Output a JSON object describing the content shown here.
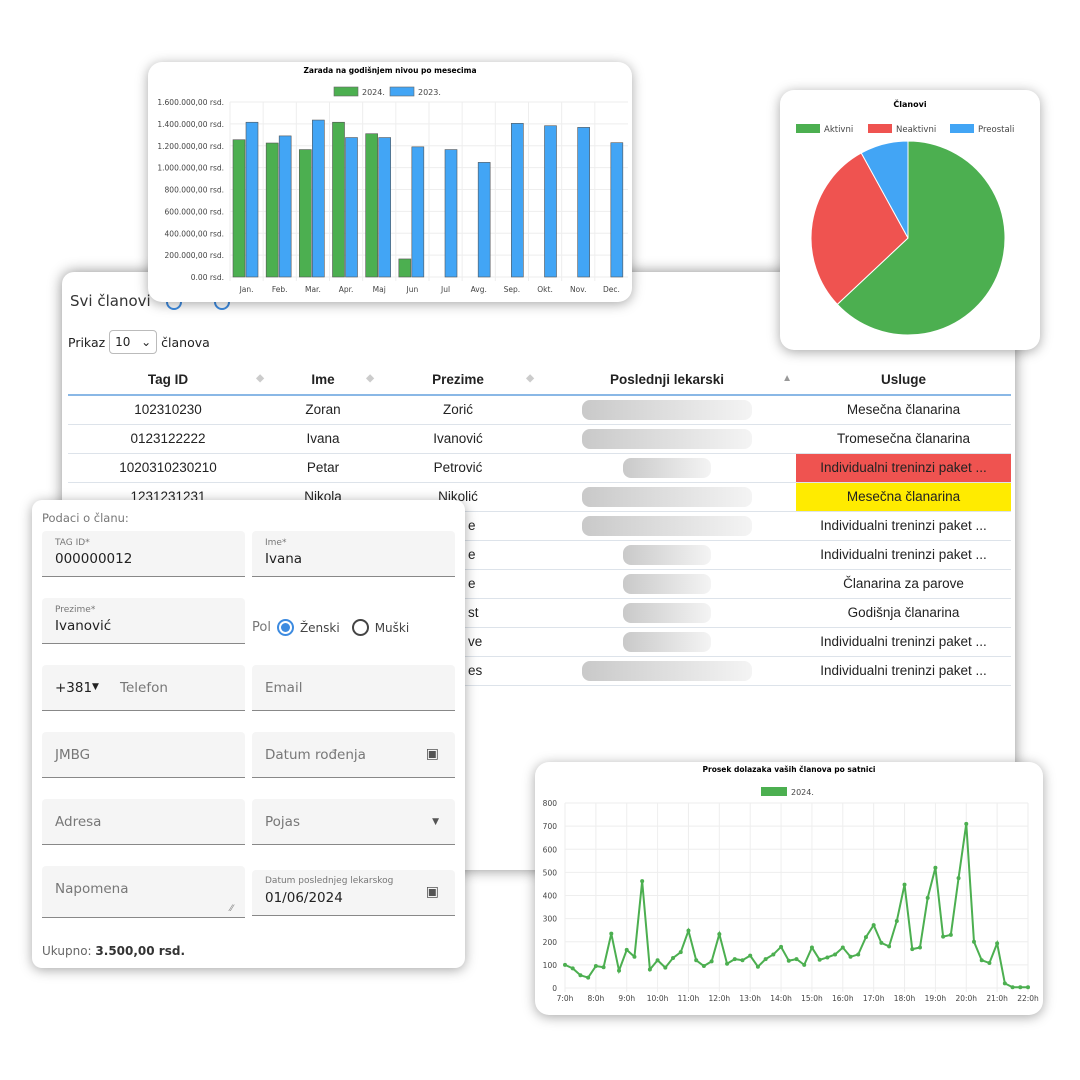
{
  "colors": {
    "green": "#4caf50",
    "blue": "#42a5f5",
    "red": "#ef5350",
    "yellow": "#ffeb00",
    "accent": "#3d8be0"
  },
  "members_table": {
    "title": "Svi članovi",
    "icons": [
      "refresh-icon",
      "search-icon"
    ],
    "show_label": "Prikaz",
    "show_value": "10",
    "show_suffix": "članova",
    "columns": [
      "Tag ID",
      "Ime",
      "Prezime",
      "Poslednji lekarski",
      "Usluge"
    ],
    "rows": [
      {
        "tag": "102310230",
        "ime": "Zoran",
        "prezime": "Zorić",
        "usluga": "Mesečna članarina",
        "status": ""
      },
      {
        "tag": "0123122222",
        "ime": "Ivana",
        "prezime": "Ivanović",
        "usluga": "Tromesečna članarina",
        "status": ""
      },
      {
        "tag": "1020310230210",
        "ime": "Petar",
        "prezime": "Petrović",
        "usluga": "Individualni treninzi paket ...",
        "status": "expired"
      },
      {
        "tag": "1231231231",
        "ime": "Nikola",
        "prezime": "Nikolić",
        "usluga": "Mesečna članarina",
        "status": "warning"
      },
      {
        "tag": "",
        "ime": "",
        "prezime": "e",
        "usluga": "Individualni treninzi paket ...",
        "status": ""
      },
      {
        "tag": "",
        "ime": "",
        "prezime": "e",
        "usluga": "Individualni treninzi paket ...",
        "status": ""
      },
      {
        "tag": "",
        "ime": "",
        "prezime": "e",
        "usluga": "Članarina za parove",
        "status": ""
      },
      {
        "tag": "",
        "ime": "",
        "prezime": "st",
        "usluga": "Godišnja članarina",
        "status": ""
      },
      {
        "tag": "",
        "ime": "",
        "prezime": "ve",
        "usluga": "Individualni treninzi paket ...",
        "status": ""
      },
      {
        "tag": "",
        "ime": "",
        "prezime": "es",
        "usluga": "Individualni treninzi paket ...",
        "status": ""
      }
    ]
  },
  "member_form": {
    "heading": "Podaci o članu:",
    "tag_label": "TAG ID*",
    "tag_value": "000000012",
    "ime_label": "Ime*",
    "ime_value": "Ivana",
    "prezime_label": "Prezime*",
    "prezime_value": "Ivanović",
    "pol_label": "Pol",
    "pol_options": [
      "Ženski",
      "Muški"
    ],
    "pol_selected": "Ženski",
    "phone_prefix": "+381",
    "phone_placeholder": "Telefon",
    "email_placeholder": "Email",
    "jmbg_placeholder": "JMBG",
    "birth_placeholder": "Datum rođenja",
    "address_placeholder": "Adresa",
    "belt_placeholder": "Pojas",
    "note_placeholder": "Napomena",
    "medical_label": "Datum poslednjeg lekarskog",
    "medical_value": "01/06/2024",
    "total_label": "Ukupno:",
    "total_value": "3.500,00 rsd."
  },
  "chart_data": [
    {
      "type": "bar",
      "title": "Zarada na godišnjem nivou po mesecima",
      "categories": [
        "Jan.",
        "Feb.",
        "Mar.",
        "Apr.",
        "Maj",
        "Jun",
        "Jul",
        "Avg.",
        "Sep.",
        "Okt.",
        "Nov.",
        "Dec."
      ],
      "series": [
        {
          "name": "2024.",
          "color": "#4caf50",
          "values": [
            1255000,
            1225000,
            1165000,
            1415000,
            1310000,
            165000,
            null,
            null,
            null,
            null,
            null,
            null
          ]
        },
        {
          "name": "2023.",
          "color": "#42a5f5",
          "values": [
            1415000,
            1290000,
            1435000,
            1275000,
            1275000,
            1190000,
            1165000,
            1048000,
            1405000,
            1383000,
            1368000,
            1228000
          ]
        }
      ],
      "ylim": [
        0,
        1600000
      ],
      "yticks": [
        "0.00 rsd.",
        "200.000,00 rsd.",
        "400.000,00 rsd.",
        "600.000,00 rsd.",
        "800.000,00 rsd.",
        "1.000.000,00 rsd.",
        "1.200.000,00 rsd.",
        "1.400.000,00 rsd.",
        "1.600.000,00 rsd."
      ],
      "legend": "top",
      "grid": true
    },
    {
      "type": "pie",
      "title": "Članovi",
      "labels": [
        "Aktivni",
        "Neaktivni",
        "Preostali"
      ],
      "values": [
        63,
        29,
        8
      ],
      "colors": [
        "#4caf50",
        "#ef5350",
        "#42a5f5"
      ],
      "legend": "top"
    },
    {
      "type": "line",
      "title": "Prosek dolazaka vaših članova po satnici",
      "series": [
        {
          "name": "2024.",
          "color": "#4caf50",
          "values": [
            100,
            85,
            55,
            45,
            95,
            90,
            235,
            75,
            165,
            135,
            462,
            80,
            120,
            88,
            130,
            155,
            248,
            120,
            95,
            115,
            233,
            105,
            125,
            120,
            140,
            92,
            125,
            145,
            178,
            118,
            125,
            100,
            175,
            122,
            132,
            145,
            175,
            135,
            145,
            220,
            272,
            195,
            180,
            290,
            447,
            168,
            175,
            390,
            520,
            222,
            230,
            475,
            710,
            200,
            120,
            108,
            193,
            20,
            3,
            3,
            3
          ]
        }
      ],
      "x_step_minutes": 15,
      "xticks": [
        "7:0h",
        "8:0h",
        "9:0h",
        "10:0h",
        "11:0h",
        "12:0h",
        "13:0h",
        "14:0h",
        "15:0h",
        "16:0h",
        "17:0h",
        "18:0h",
        "19:0h",
        "20:0h",
        "21:0h",
        "22:0h"
      ],
      "ylim": [
        0,
        800
      ],
      "yticks": [
        "0",
        "100",
        "200",
        "300",
        "400",
        "500",
        "600",
        "700",
        "800"
      ],
      "legend": "top",
      "grid": true
    }
  ]
}
